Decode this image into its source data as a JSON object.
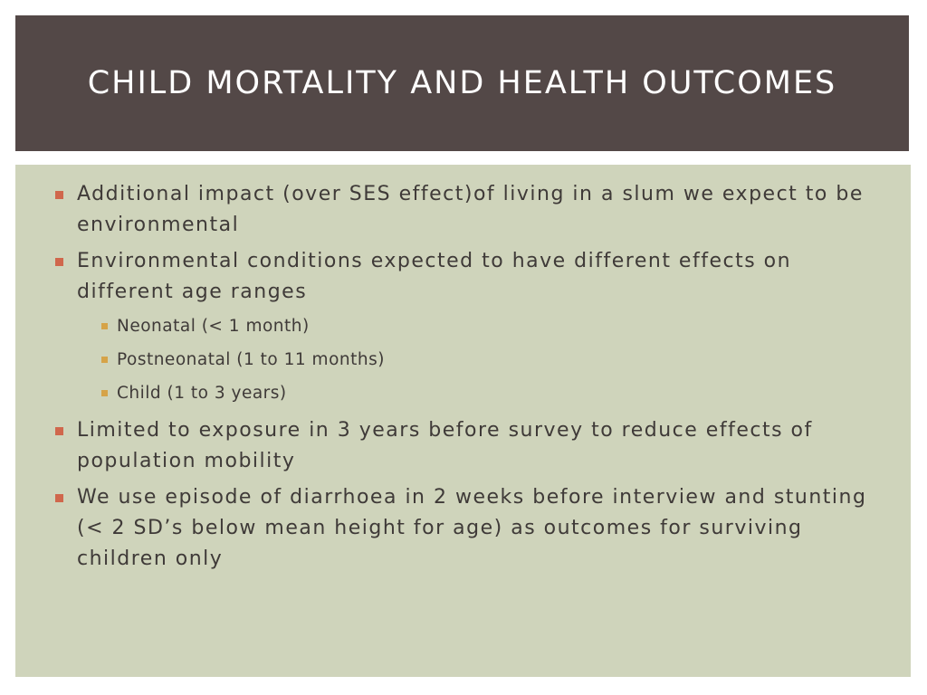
{
  "slide": {
    "title": "CHILD MORTALITY AND HEALTH OUTCOMES",
    "bullets": [
      {
        "text": "Additional impact (over SES effect)of living in a slum we expect to be environmental"
      },
      {
        "text": "Environmental conditions expected to have different effects on different age ranges",
        "sub": [
          "Neonatal (< 1 month)",
          "Postneonatal (1 to 11 months)",
          "Child (1 to 3 years)"
        ]
      },
      {
        "text": "Limited to exposure in 3 years before survey to reduce effects of population mobility"
      },
      {
        "text": "We use episode of diarrhoea in 2 weeks before interview and stunting (< 2 SD’s below mean height for age) as outcomes for surviving children only"
      }
    ]
  },
  "colors": {
    "title_bar": "#534847",
    "content_background": "#cfd4bb",
    "text": "#3f3a38",
    "bullet_marker": "#d0674c",
    "sub_bullet_marker": "#d6a348"
  },
  "icons": {
    "bullet": "square-bullet-icon",
    "sub_bullet": "small-square-bullet-icon"
  }
}
